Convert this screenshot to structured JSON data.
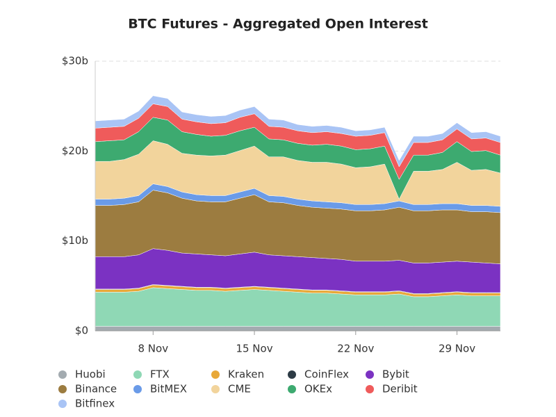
{
  "chart_data": {
    "type": "stacked_area",
    "title": "BTC Futures - Aggregated Open Interest",
    "x": [
      4,
      5,
      6,
      7,
      8,
      9,
      10,
      11,
      12,
      13,
      14,
      15,
      16,
      17,
      18,
      19,
      20,
      21,
      22,
      23,
      24,
      25,
      26,
      27,
      28,
      29,
      30,
      31,
      32
    ],
    "xlim": [
      4,
      32
    ],
    "xticks": [
      {
        "value": 8,
        "label": "8 Nov"
      },
      {
        "value": 15,
        "label": "15 Nov"
      },
      {
        "value": 22,
        "label": "22 Nov"
      },
      {
        "value": 29,
        "label": "29 Nov"
      }
    ],
    "ylim": [
      0,
      30
    ],
    "yticks": [
      {
        "value": 0,
        "label": "$0"
      },
      {
        "value": 10,
        "label": "$10b"
      },
      {
        "value": 20,
        "label": "$20b"
      },
      {
        "value": 30,
        "label": "$30b"
      }
    ],
    "grid": true,
    "series": [
      {
        "name": "Huobi",
        "color": "#a3abb0",
        "values": [
          0.5,
          0.5,
          0.5,
          0.5,
          0.5,
          0.5,
          0.5,
          0.5,
          0.5,
          0.5,
          0.5,
          0.5,
          0.5,
          0.5,
          0.5,
          0.5,
          0.5,
          0.5,
          0.5,
          0.5,
          0.5,
          0.5,
          0.5,
          0.5,
          0.5,
          0.5,
          0.5,
          0.5,
          0.5
        ]
      },
      {
        "name": "FTX",
        "color": "#8fd8b5",
        "values": [
          3.8,
          3.8,
          3.8,
          3.9,
          4.3,
          4.2,
          4.1,
          4.0,
          4.0,
          3.9,
          4.0,
          4.1,
          4.0,
          3.9,
          3.8,
          3.7,
          3.7,
          3.6,
          3.5,
          3.5,
          3.5,
          3.6,
          3.3,
          3.3,
          3.4,
          3.5,
          3.4,
          3.4,
          3.4
        ]
      },
      {
        "name": "Kraken",
        "color": "#e8a838",
        "values": [
          0.3,
          0.3,
          0.3,
          0.3,
          0.3,
          0.3,
          0.3,
          0.3,
          0.3,
          0.3,
          0.3,
          0.3,
          0.3,
          0.3,
          0.3,
          0.3,
          0.3,
          0.3,
          0.3,
          0.3,
          0.3,
          0.3,
          0.3,
          0.3,
          0.3,
          0.3,
          0.3,
          0.3,
          0.3
        ]
      },
      {
        "name": "CoinFlex",
        "color": "#2d3b45",
        "values": [
          0.05,
          0.05,
          0.05,
          0.05,
          0.05,
          0.05,
          0.05,
          0.05,
          0.05,
          0.05,
          0.05,
          0.05,
          0.05,
          0.05,
          0.05,
          0.05,
          0.05,
          0.05,
          0.05,
          0.05,
          0.05,
          0.05,
          0.05,
          0.05,
          0.05,
          0.05,
          0.05,
          0.05,
          0.05
        ]
      },
      {
        "name": "Bybit",
        "color": "#7b32c2",
        "values": [
          3.6,
          3.6,
          3.6,
          3.7,
          4.0,
          3.9,
          3.7,
          3.7,
          3.6,
          3.6,
          3.7,
          3.8,
          3.6,
          3.6,
          3.6,
          3.6,
          3.5,
          3.5,
          3.4,
          3.4,
          3.4,
          3.4,
          3.4,
          3.4,
          3.4,
          3.4,
          3.4,
          3.3,
          3.2
        ]
      },
      {
        "name": "Binance",
        "color": "#9c7c40",
        "values": [
          5.7,
          5.7,
          5.8,
          5.9,
          6.5,
          6.4,
          6.1,
          5.9,
          5.9,
          6.0,
          6.2,
          6.4,
          5.9,
          5.9,
          5.7,
          5.6,
          5.6,
          5.6,
          5.6,
          5.6,
          5.7,
          5.9,
          5.8,
          5.8,
          5.8,
          5.7,
          5.6,
          5.7,
          5.7
        ]
      },
      {
        "name": "BitMEX",
        "color": "#6a9be8",
        "values": [
          0.7,
          0.7,
          0.7,
          0.7,
          0.7,
          0.7,
          0.7,
          0.7,
          0.7,
          0.7,
          0.7,
          0.7,
          0.7,
          0.7,
          0.7,
          0.7,
          0.7,
          0.7,
          0.7,
          0.7,
          0.7,
          0.7,
          0.7,
          0.7,
          0.7,
          0.7,
          0.7,
          0.7,
          0.7
        ]
      },
      {
        "name": "CME",
        "color": "#f2d49c",
        "values": [
          4.2,
          4.2,
          4.3,
          4.6,
          4.8,
          4.7,
          4.3,
          4.4,
          4.4,
          4.5,
          4.6,
          4.7,
          4.3,
          4.4,
          4.3,
          4.3,
          4.4,
          4.3,
          4.1,
          4.2,
          4.4,
          0.2,
          3.7,
          3.7,
          3.8,
          4.6,
          3.9,
          4.0,
          3.7
        ]
      },
      {
        "name": "OKEx",
        "color": "#3daa70",
        "values": [
          2.2,
          2.3,
          2.2,
          2.5,
          2.6,
          2.7,
          2.4,
          2.3,
          2.2,
          2.2,
          2.2,
          2.1,
          2.0,
          1.9,
          1.9,
          1.9,
          2.0,
          2.0,
          2.0,
          2.0,
          2.0,
          2.2,
          1.8,
          1.8,
          1.9,
          2.3,
          2.1,
          2.1,
          2.0
        ]
      },
      {
        "name": "Deribit",
        "color": "#ef5b5b",
        "values": [
          1.5,
          1.5,
          1.5,
          1.5,
          1.5,
          1.5,
          1.4,
          1.4,
          1.4,
          1.4,
          1.5,
          1.5,
          1.4,
          1.4,
          1.4,
          1.4,
          1.4,
          1.4,
          1.5,
          1.5,
          1.5,
          1.4,
          1.4,
          1.4,
          1.4,
          1.4,
          1.4,
          1.4,
          1.4
        ]
      },
      {
        "name": "Bitfinex",
        "color": "#a9c4f5",
        "values": [
          0.8,
          0.8,
          0.8,
          0.8,
          0.9,
          0.9,
          0.8,
          0.8,
          0.8,
          0.8,
          0.8,
          0.8,
          0.8,
          0.8,
          0.7,
          0.7,
          0.7,
          0.7,
          0.6,
          0.6,
          0.6,
          0.7,
          0.7,
          0.7,
          0.7,
          0.7,
          0.7,
          0.7,
          0.7
        ]
      }
    ]
  }
}
